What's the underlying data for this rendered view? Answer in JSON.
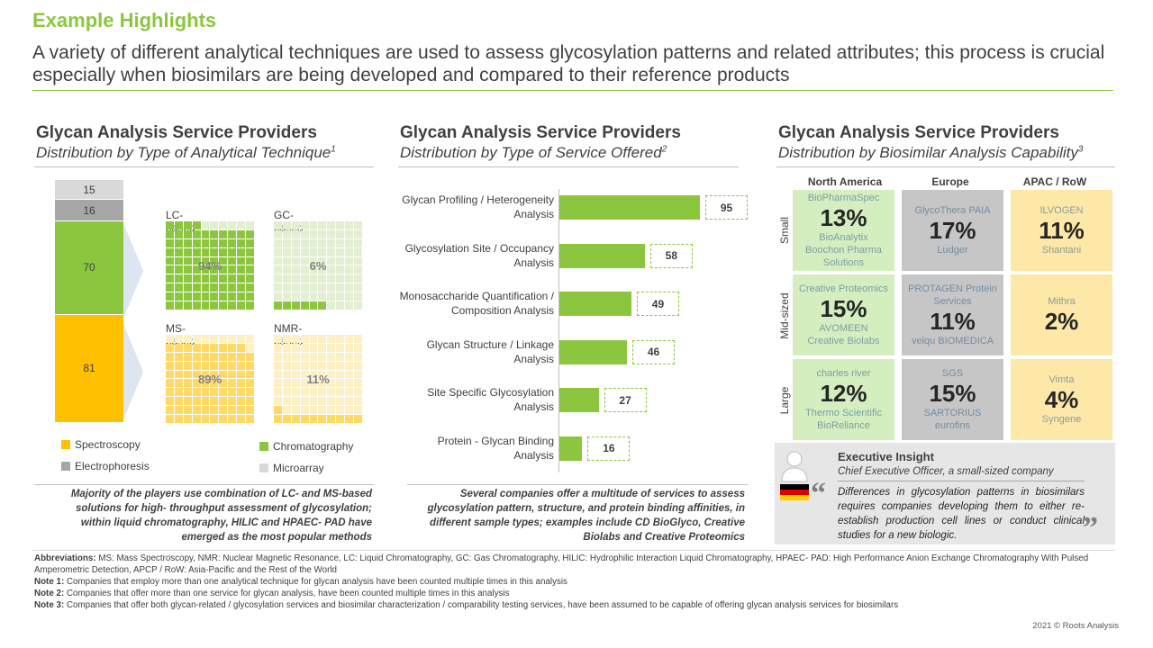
{
  "header": {
    "highlight": "Example Highlights",
    "subtitle": "A variety of different analytical techniques are used to assess glycosylation patterns and related attributes; this process is crucial especially when biosimilars are being developed and compared to their reference products"
  },
  "panel1": {
    "title": "Glycan Analysis Service Providers",
    "subtitle": "Distribution by Type of Analytical Technique",
    "sup": "1",
    "note": "Majority of the players use combination of LC- and MS-based solutions for high- throughput assessment of glycosylation; within liquid chromatography, HILIC and HPAEC- PAD have emerged as the most popular methods",
    "legend": [
      {
        "label": "Spectroscopy",
        "color": "#ffc000"
      },
      {
        "label": "Chromatography",
        "color": "#8cc63f"
      },
      {
        "label": "Electrophoresis",
        "color": "#a6a6a6"
      },
      {
        "label": "Microarray",
        "color": "#d9d9d9"
      }
    ],
    "waffles": [
      {
        "title": "LC-based",
        "value": "94%",
        "pct": 94,
        "fill": "#8cc63f",
        "empty": "#e2efd0"
      },
      {
        "title": "GC-based",
        "value": "6%",
        "pct": 6,
        "fill": "#8cc63f",
        "empty": "#e2efd0"
      },
      {
        "title": "MS-based",
        "value": "89%",
        "pct": 89,
        "fill": "#ffd966",
        "empty": "#fdf0c4"
      },
      {
        "title": "NMR-based",
        "value": "11%",
        "pct": 11,
        "fill": "#ffd966",
        "empty": "#fdf0c4"
      }
    ]
  },
  "panel2": {
    "title": "Glycan Analysis Service Providers",
    "subtitle": "Distribution by Type of Service Offered",
    "sup": "2",
    "note": "Several companies offer a multitude of services to assess glycosylation pattern, structure, and protein binding affinities, in different sample types; examples include CD BioGlyco, Creative Biolabs and Creative Proteomics"
  },
  "panel3": {
    "title": "Glycan Analysis Service Providers",
    "subtitle": "Distribution by Biosimilar Analysis Capability",
    "sup": "3",
    "columns": [
      "North America",
      "Europe",
      "APAC / RoW"
    ],
    "rows": [
      "Small",
      "Mid-sized",
      "Large"
    ],
    "cells": [
      {
        "pct": "13%",
        "logos": [
          "BioPharmaSpec",
          "BioAnalytix",
          "Boochon Pharma Solutions"
        ],
        "bg": "#d5eec0"
      },
      {
        "pct": "17%",
        "logos": [
          "GlycoThera  PAIA",
          "Ludger"
        ],
        "bg": "#c6c6c6"
      },
      {
        "pct": "11%",
        "logos": [
          "ILVOGEN",
          "Shantani"
        ],
        "bg": "#fde8a8"
      },
      {
        "pct": "15%",
        "logos": [
          "Creative Proteomics",
          "AVOMEEN",
          "Creative Biolabs"
        ],
        "bg": "#d5eec0"
      },
      {
        "pct": "11%",
        "logos": [
          "PROTAGEN Protein Services",
          "velqu BIOMEDICA"
        ],
        "bg": "#c6c6c6"
      },
      {
        "pct": "2%",
        "logos": [
          "Mithra"
        ],
        "bg": "#fde8a8"
      },
      {
        "pct": "12%",
        "logos": [
          "charles river",
          "Thermo Scientific",
          "BioReliance"
        ],
        "bg": "#d5eec0"
      },
      {
        "pct": "15%",
        "logos": [
          "SGS",
          "SARTORIUS",
          "eurofins"
        ],
        "bg": "#c6c6c6"
      },
      {
        "pct": "4%",
        "logos": [
          "Vimta",
          "Syngene"
        ],
        "bg": "#fde8a8"
      }
    ],
    "insight": {
      "title": "Executive Insight",
      "role": "Chief Executive Officer, a small-sized company",
      "quote": "Differences in glycosylation patterns in biosimilars requires companies developing them to either re-establish production cell lines or conduct clinical studies for a new biologic."
    }
  },
  "chart_data": [
    {
      "type": "bar",
      "stacked": true,
      "categories": [
        "Spectroscopy",
        "Chromatography",
        "Electrophoresis",
        "Microarray"
      ],
      "values": [
        81,
        70,
        16,
        15
      ],
      "colors": [
        "#ffc000",
        "#8cc63f",
        "#a6a6a6",
        "#d9d9d9"
      ]
    },
    {
      "type": "bar",
      "orientation": "horizontal",
      "categories": [
        "Glycan Profiling / Heterogeneity Analysis",
        "Glycosylation Site / Occupancy  Analysis",
        "Monosaccharide Quantification / Composition Analysis",
        "Glycan Structure / Linkage Analysis",
        "Site Specific Glycosylation Analysis",
        "Protein - Glycan Binding Analysis"
      ],
      "values": [
        95,
        58,
        49,
        46,
        27,
        16
      ],
      "xlim": [
        0,
        95
      ],
      "color": "#8cc63f"
    }
  ],
  "footer": {
    "abbr_label": "Abbreviations:",
    "abbr": " MS: Mass Spectroscopy, NMR: Nuclear Magnetic Resonance, LC: Liquid Chromatography, GC: Gas Chromatography, HILIC:  Hydrophilic Interaction Liquid Chromatography, HPAEC- PAD: High Performance Anion Exchange Chromatography With Pulsed Amperometric Detection, APCP / RoW: Asia-Pacific and the Rest of the World",
    "notes": [
      {
        "label": "Note 1:",
        "text": " Companies that employ more than one analytical technique for glycan analysis have been counted multiple  times in this analysis"
      },
      {
        "label": "Note 2:",
        "text": " Companies that offer more than one service for glycan analysis, have been counted multiple times in this analysis"
      },
      {
        "label": "Note 3:",
        "text": " Companies that offer both glycan-related / glycosylation services and biosimilar characterization / comparability testing services, have been assumed to be capable of offering glycan analysis services for biosimilars"
      }
    ],
    "copyright": "2021 © Roots Analysis"
  }
}
